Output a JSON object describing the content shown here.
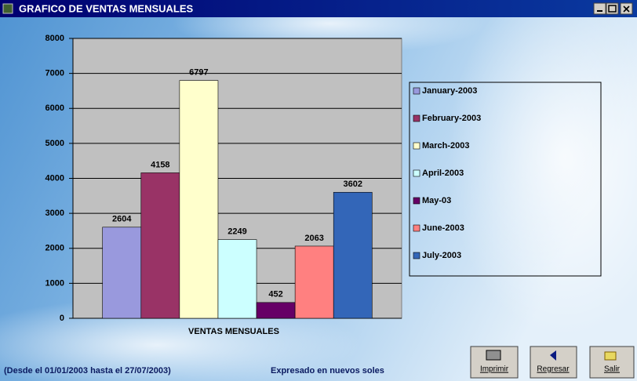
{
  "window": {
    "title": "GRAFICO DE VENTAS MENSUALES"
  },
  "chart_data": {
    "type": "bar",
    "x_label": "VENTAS MENSUALES",
    "categories": [
      "VENTAS MENSUALES"
    ],
    "series": [
      {
        "name": "January-2003",
        "color": "#9999dd",
        "values": [
          2604
        ]
      },
      {
        "name": "February-2003",
        "color": "#993366",
        "values": [
          4158
        ]
      },
      {
        "name": "March-2003",
        "color": "#ffffcc",
        "values": [
          6797
        ]
      },
      {
        "name": "April-2003",
        "color": "#ccffff",
        "values": [
          2249
        ]
      },
      {
        "name": "May-03",
        "color": "#660066",
        "values": [
          452
        ]
      },
      {
        "name": "June-2003",
        "color": "#ff8080",
        "values": [
          2063
        ]
      },
      {
        "name": "July-2003",
        "color": "#3366b8",
        "values": [
          3602
        ]
      }
    ],
    "ylim": [
      0,
      8000
    ],
    "yticks": [
      0,
      1000,
      2000,
      3000,
      4000,
      5000,
      6000,
      7000,
      8000
    ],
    "grid": true,
    "legend": "right"
  },
  "footer": {
    "range": "(Desde el 01/01/2003 hasta el 27/07/2003)",
    "units": "Expresado en nuevos soles"
  },
  "buttons": [
    "Imprimir",
    "Regresar",
    "Salir"
  ]
}
